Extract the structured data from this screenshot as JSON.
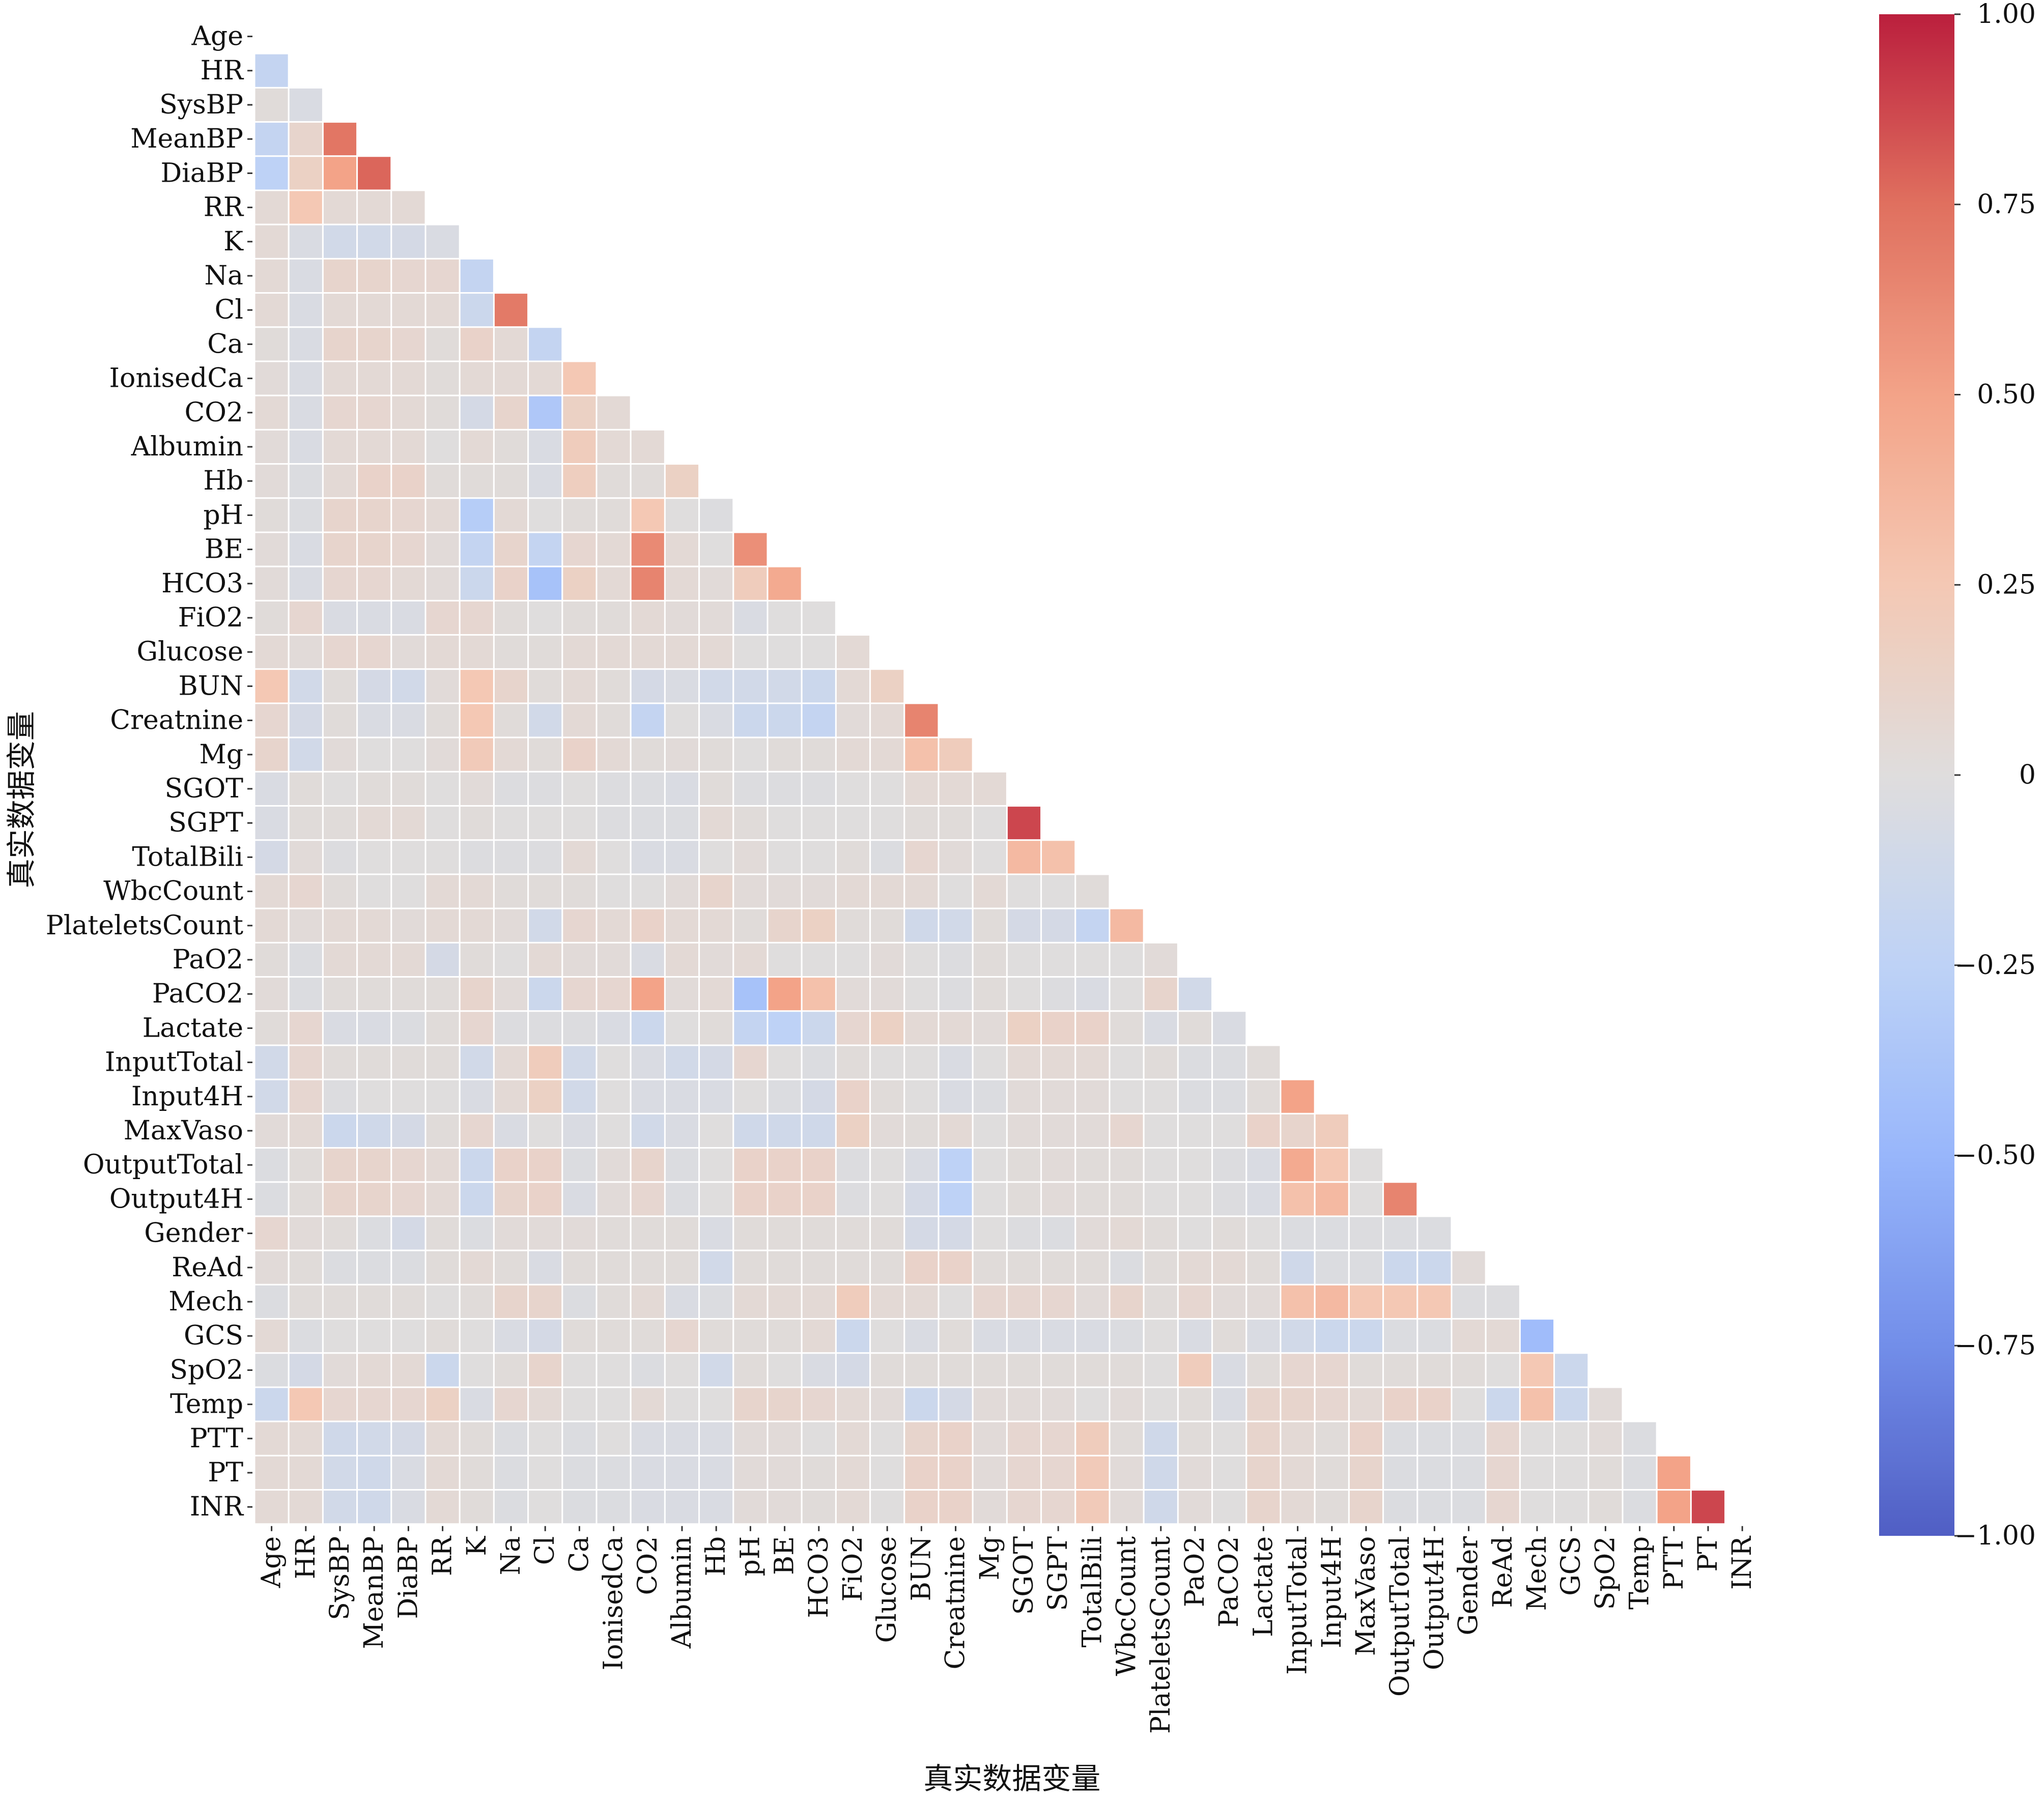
{
  "chart_data": {
    "type": "heatmap",
    "title": "",
    "xlabel": "真实数据变量",
    "ylabel": "真实数据变量",
    "mask": "upper-triangle (including diagonal)",
    "colormap": "coolwarm",
    "vmin": -1.0,
    "vmax": 1.0,
    "grid": false,
    "legend": "colorbar-right",
    "colorbar_ticks": [
      1.0,
      0.75,
      0.5,
      0.25,
      0,
      -0.25,
      -0.5,
      -0.75,
      -1.0
    ],
    "colorbar_tick_labels": [
      "1.00",
      "0.75",
      "0.50",
      "0.25",
      "0",
      "−0.25",
      "−0.50",
      "−0.75",
      "−1.00"
    ],
    "variables": [
      "Age",
      "HR",
      "SysBP",
      "MeanBP",
      "DiaBP",
      "RR",
      "K",
      "Na",
      "Cl",
      "Ca",
      "IonisedCa",
      "CO2",
      "Albumin",
      "Hb",
      "pH",
      "BE",
      "HCO3",
      "FiO2",
      "Glucose",
      "BUN",
      "Creatnine",
      "Mg",
      "SGOT",
      "SGPT",
      "TotalBili",
      "WbcCount",
      "PlateletsCount",
      "PaO2",
      "PaCO2",
      "Lactate",
      "InputTotal",
      "Input4H",
      "MaxVaso",
      "OutputTotal",
      "Output4H",
      "Gender",
      "ReAd",
      "Mech",
      "GCS",
      "SpO2",
      "Temp",
      "PTT",
      "PT",
      "INR"
    ],
    "lower_triangle": [
      [],
      [
        -0.2
      ],
      [
        0.02,
        -0.05
      ],
      [
        -0.2,
        0.1,
        0.72
      ],
      [
        -0.25,
        0.15,
        0.5,
        0.78
      ],
      [
        0.05,
        0.25,
        0.05,
        0.05,
        0.05
      ],
      [
        0.05,
        -0.05,
        -0.1,
        -0.1,
        -0.08,
        -0.05
      ],
      [
        0.05,
        -0.05,
        0.1,
        0.1,
        0.08,
        0.08,
        -0.2
      ],
      [
        0.05,
        -0.05,
        0.05,
        0.05,
        0.05,
        0.05,
        -0.15,
        0.7
      ],
      [
        0.02,
        -0.05,
        0.1,
        0.1,
        0.08,
        0.02,
        0.12,
        0.05,
        -0.2
      ],
      [
        0.03,
        -0.05,
        0.05,
        0.05,
        0.05,
        0.02,
        0.05,
        0.05,
        0.05,
        0.25
      ],
      [
        0.05,
        -0.05,
        0.08,
        0.08,
        0.05,
        0.02,
        -0.08,
        0.1,
        -0.35,
        0.15,
        0.05
      ],
      [
        0.03,
        -0.05,
        0.05,
        0.05,
        0.05,
        0.0,
        0.05,
        0.02,
        -0.05,
        0.2,
        0.05,
        0.05
      ],
      [
        0.03,
        -0.03,
        0.05,
        0.12,
        0.12,
        0.02,
        0.02,
        0.02,
        -0.05,
        0.18,
        0.02,
        0.02,
        0.15
      ],
      [
        0.02,
        -0.03,
        0.1,
        0.1,
        0.08,
        0.05,
        -0.3,
        0.05,
        0.0,
        0.02,
        0.02,
        0.25,
        0.0,
        -0.02
      ],
      [
        0.03,
        -0.05,
        0.1,
        0.1,
        0.08,
        0.03,
        -0.2,
        0.1,
        -0.2,
        0.08,
        0.05,
        0.62,
        0.05,
        0.0,
        0.6
      ],
      [
        0.03,
        -0.05,
        0.08,
        0.08,
        0.05,
        0.03,
        -0.15,
        0.12,
        -0.4,
        0.15,
        0.05,
        0.65,
        0.05,
        0.03,
        0.2,
        0.45
      ],
      [
        0.02,
        0.08,
        -0.05,
        -0.05,
        -0.05,
        0.08,
        0.08,
        0.02,
        0.0,
        0.02,
        0.02,
        0.05,
        0.03,
        0.03,
        -0.05,
        0.0,
        0.0
      ],
      [
        0.05,
        0.03,
        0.08,
        0.08,
        0.03,
        0.05,
        0.05,
        0.02,
        0.02,
        0.05,
        0.05,
        0.05,
        0.05,
        0.05,
        0.0,
        0.0,
        0.0,
        0.05
      ],
      [
        0.25,
        -0.1,
        0.02,
        -0.08,
        -0.1,
        0.03,
        0.25,
        0.1,
        0.02,
        0.05,
        0.02,
        -0.08,
        -0.05,
        -0.1,
        -0.1,
        -0.1,
        -0.15,
        0.05,
        0.15
      ],
      [
        0.08,
        -0.08,
        0.02,
        -0.05,
        -0.05,
        0.02,
        0.25,
        0.02,
        -0.1,
        0.05,
        0.02,
        -0.2,
        0.0,
        -0.05,
        -0.15,
        -0.15,
        -0.2,
        0.03,
        0.05,
        0.65
      ],
      [
        0.1,
        -0.1,
        0.03,
        0.0,
        0.0,
        0.03,
        0.22,
        0.05,
        0.02,
        0.12,
        0.05,
        0.02,
        0.03,
        0.02,
        0.0,
        0.02,
        0.02,
        0.05,
        0.05,
        0.3,
        0.2
      ],
      [
        -0.05,
        0.02,
        0.0,
        0.02,
        0.02,
        0.0,
        0.03,
        -0.02,
        -0.02,
        0.0,
        -0.02,
        -0.03,
        -0.05,
        0.02,
        -0.02,
        -0.02,
        -0.02,
        0.0,
        0.0,
        0.05,
        0.05,
        0.05
      ],
      [
        -0.05,
        0.02,
        0.02,
        0.05,
        0.05,
        0.0,
        0.02,
        0.0,
        0.0,
        0.0,
        -0.02,
        -0.03,
        -0.03,
        0.05,
        0.02,
        0.0,
        0.0,
        0.0,
        0.0,
        0.02,
        0.02,
        0.0,
        0.88
      ],
      [
        -0.08,
        0.03,
        -0.02,
        0.0,
        0.0,
        0.0,
        -0.02,
        -0.02,
        -0.02,
        0.05,
        0.0,
        -0.05,
        -0.05,
        0.0,
        0.03,
        0.0,
        0.0,
        0.02,
        -0.03,
        0.08,
        0.03,
        0.0,
        0.35,
        0.3
      ],
      [
        0.05,
        0.08,
        0.02,
        0.0,
        0.0,
        0.05,
        0.05,
        0.02,
        0.02,
        0.02,
        0.0,
        0.0,
        0.03,
        0.1,
        0.03,
        0.03,
        0.03,
        0.05,
        0.05,
        0.05,
        0.0,
        0.05,
        0.0,
        0.0,
        0.02
      ],
      [
        0.05,
        0.03,
        0.05,
        0.05,
        0.03,
        0.05,
        0.05,
        0.03,
        -0.1,
        0.08,
        0.05,
        0.12,
        0.05,
        0.05,
        0.02,
        0.1,
        0.15,
        0.02,
        0.02,
        -0.12,
        -0.1,
        0.02,
        -0.08,
        -0.08,
        -0.2,
        0.35
      ],
      [
        0.02,
        -0.03,
        0.05,
        0.05,
        0.05,
        -0.08,
        0.02,
        0.0,
        0.05,
        0.03,
        0.03,
        -0.05,
        0.05,
        0.03,
        0.05,
        0.0,
        0.0,
        0.0,
        0.03,
        0.0,
        -0.02,
        0.02,
        0.0,
        0.0,
        0.0,
        0.0,
        0.03
      ],
      [
        0.03,
        -0.03,
        0.02,
        0.02,
        0.02,
        0.02,
        0.1,
        0.03,
        -0.15,
        0.08,
        0.08,
        0.5,
        0.03,
        0.05,
        -0.4,
        0.5,
        0.3,
        0.03,
        0.03,
        0.0,
        -0.02,
        0.02,
        0.0,
        -0.02,
        -0.05,
        0.0,
        0.1,
        -0.1
      ],
      [
        0.02,
        0.08,
        -0.05,
        -0.05,
        -0.03,
        0.02,
        0.08,
        -0.02,
        -0.02,
        -0.02,
        -0.05,
        -0.15,
        0.0,
        0.02,
        -0.2,
        -0.25,
        -0.15,
        0.08,
        0.15,
        0.05,
        0.05,
        0.03,
        0.15,
        0.12,
        0.12,
        0.02,
        -0.05,
        0.02,
        -0.05
      ],
      [
        -0.1,
        0.08,
        0.02,
        0.02,
        0.02,
        0.02,
        -0.1,
        0.05,
        0.2,
        -0.1,
        0.0,
        -0.05,
        -0.1,
        -0.08,
        0.08,
        0.0,
        -0.03,
        0.02,
        0.0,
        0.0,
        -0.05,
        0.0,
        0.05,
        0.05,
        0.05,
        0.0,
        0.02,
        -0.03,
        -0.03,
        0.02
      ],
      [
        -0.1,
        0.08,
        -0.02,
        0.0,
        0.0,
        0.0,
        -0.05,
        0.05,
        0.15,
        -0.1,
        0.0,
        -0.05,
        -0.05,
        -0.05,
        0.0,
        -0.03,
        -0.08,
        0.12,
        0.02,
        0.0,
        -0.05,
        -0.03,
        0.03,
        0.03,
        0.03,
        0.0,
        0.0,
        -0.03,
        -0.03,
        0.02,
        0.5
      ],
      [
        0.03,
        0.05,
        -0.15,
        -0.12,
        -0.08,
        0.02,
        0.08,
        -0.05,
        0.0,
        -0.05,
        0.0,
        -0.1,
        -0.05,
        0.0,
        -0.12,
        -0.12,
        -0.12,
        0.15,
        0.03,
        0.02,
        0.05,
        0.0,
        0.03,
        0.03,
        0.03,
        0.08,
        0.0,
        0.0,
        0.0,
        0.12,
        0.1,
        0.2
      ],
      [
        -0.03,
        0.02,
        0.1,
        0.1,
        0.08,
        0.05,
        -0.15,
        0.12,
        0.12,
        -0.03,
        0.03,
        0.1,
        -0.03,
        0.0,
        0.12,
        0.12,
        0.12,
        -0.02,
        0.0,
        -0.05,
        -0.25,
        0.0,
        0.02,
        0.03,
        0.02,
        0.02,
        0.0,
        0.0,
        -0.02,
        -0.05,
        0.45,
        0.25,
        0.0
      ],
      [
        -0.03,
        0.02,
        0.1,
        0.1,
        0.08,
        0.05,
        -0.15,
        0.1,
        0.12,
        -0.05,
        0.03,
        0.08,
        -0.03,
        0.0,
        0.12,
        0.12,
        0.12,
        -0.02,
        0.0,
        -0.08,
        -0.25,
        0.0,
        0.02,
        0.03,
        0.02,
        0.02,
        0.0,
        0.0,
        -0.02,
        -0.05,
        0.3,
        0.35,
        0.0,
        0.65
      ],
      [
        0.08,
        0.03,
        0.02,
        -0.03,
        -0.08,
        0.02,
        -0.03,
        0.03,
        0.03,
        0.03,
        0.02,
        0.02,
        0.02,
        -0.05,
        0.02,
        0.02,
        0.02,
        0.02,
        0.02,
        -0.08,
        -0.08,
        0.0,
        -0.02,
        -0.03,
        0.03,
        0.05,
        0.02,
        0.0,
        0.02,
        0.0,
        -0.03,
        -0.03,
        -0.02,
        -0.03,
        -0.03
      ],
      [
        0.03,
        0.02,
        -0.03,
        -0.03,
        -0.03,
        0.02,
        0.05,
        0.02,
        -0.05,
        0.02,
        0.02,
        0.02,
        0.02,
        -0.1,
        0.02,
        0.02,
        0.02,
        0.02,
        0.02,
        0.12,
        0.12,
        0.02,
        0.02,
        0.02,
        0.02,
        -0.03,
        0.02,
        0.05,
        0.05,
        0.02,
        -0.12,
        -0.03,
        -0.03,
        -0.15,
        -0.15,
        0.03
      ],
      [
        -0.03,
        0.02,
        0.02,
        0.02,
        0.02,
        0.0,
        0.02,
        0.1,
        0.1,
        -0.03,
        0.02,
        0.05,
        -0.05,
        -0.03,
        0.05,
        0.05,
        0.05,
        0.2,
        0.05,
        0.05,
        0.0,
        0.08,
        0.08,
        0.08,
        0.03,
        0.1,
        0.02,
        0.08,
        0.03,
        0.03,
        0.3,
        0.35,
        0.25,
        0.25,
        0.25,
        -0.02,
        -0.02
      ],
      [
        0.05,
        -0.03,
        0.0,
        0.0,
        0.0,
        0.02,
        0.0,
        -0.05,
        -0.08,
        0.02,
        0.02,
        0.02,
        0.08,
        0.02,
        0.02,
        0.02,
        0.05,
        -0.15,
        0.0,
        -0.05,
        0.02,
        -0.05,
        -0.05,
        -0.05,
        -0.05,
        -0.03,
        0.0,
        -0.05,
        0.02,
        -0.05,
        -0.1,
        -0.15,
        -0.15,
        -0.03,
        -0.03,
        0.05,
        0.05,
        -0.45
      ],
      [
        -0.03,
        -0.08,
        0.03,
        0.05,
        0.05,
        -0.15,
        0.0,
        0.02,
        0.1,
        0.0,
        0.0,
        -0.03,
        0.0,
        -0.1,
        0.02,
        0.0,
        -0.05,
        -0.08,
        0.02,
        0.02,
        0.02,
        0.02,
        0.02,
        0.02,
        0.02,
        0.02,
        0.0,
        0.2,
        -0.05,
        0.02,
        0.08,
        0.08,
        0.02,
        0.02,
        0.02,
        0.02,
        0.0,
        0.25,
        -0.15
      ],
      [
        -0.15,
        0.25,
        0.08,
        0.08,
        0.08,
        0.15,
        -0.05,
        0.08,
        0.05,
        0.0,
        0.0,
        0.05,
        0.0,
        0.0,
        0.1,
        0.1,
        0.08,
        0.05,
        0.03,
        -0.15,
        -0.08,
        0.03,
        0.03,
        0.03,
        0.0,
        0.03,
        0.0,
        0.02,
        -0.05,
        0.1,
        0.1,
        0.08,
        0.05,
        0.12,
        0.12,
        0.0,
        -0.15,
        0.3,
        -0.15,
        0.03
      ],
      [
        0.05,
        0.05,
        -0.12,
        -0.1,
        -0.08,
        0.05,
        0.02,
        -0.03,
        0.0,
        -0.03,
        0.0,
        -0.05,
        -0.05,
        -0.05,
        0.03,
        0.03,
        0.0,
        0.05,
        0.0,
        0.1,
        0.12,
        0.03,
        0.08,
        0.08,
        0.2,
        0.02,
        -0.12,
        0.02,
        0.0,
        0.1,
        0.05,
        0.02,
        0.12,
        -0.03,
        -0.03,
        -0.03,
        0.08,
        0.0,
        0.0,
        0.03,
        -0.03
      ],
      [
        0.05,
        0.05,
        -0.1,
        -0.12,
        -0.05,
        0.05,
        0.02,
        -0.03,
        0.0,
        -0.03,
        -0.03,
        -0.05,
        -0.05,
        -0.05,
        0.03,
        0.03,
        0.02,
        0.05,
        0.0,
        0.12,
        0.12,
        0.03,
        0.08,
        0.08,
        0.22,
        0.03,
        -0.12,
        0.03,
        0.0,
        0.1,
        0.05,
        0.02,
        0.1,
        -0.03,
        -0.03,
        -0.03,
        0.08,
        0.0,
        0.0,
        0.02,
        -0.03,
        0.5
      ],
      [
        0.05,
        0.05,
        -0.1,
        -0.12,
        -0.05,
        0.05,
        0.02,
        -0.03,
        0.0,
        -0.03,
        -0.03,
        -0.05,
        -0.05,
        -0.05,
        0.03,
        0.03,
        0.02,
        0.05,
        0.0,
        0.12,
        0.12,
        0.03,
        0.08,
        0.08,
        0.22,
        0.03,
        -0.12,
        0.03,
        0.0,
        0.1,
        0.05,
        0.02,
        0.1,
        -0.03,
        -0.03,
        -0.03,
        0.08,
        0.0,
        0.0,
        0.02,
        -0.03,
        0.5,
        0.88
      ]
    ]
  }
}
